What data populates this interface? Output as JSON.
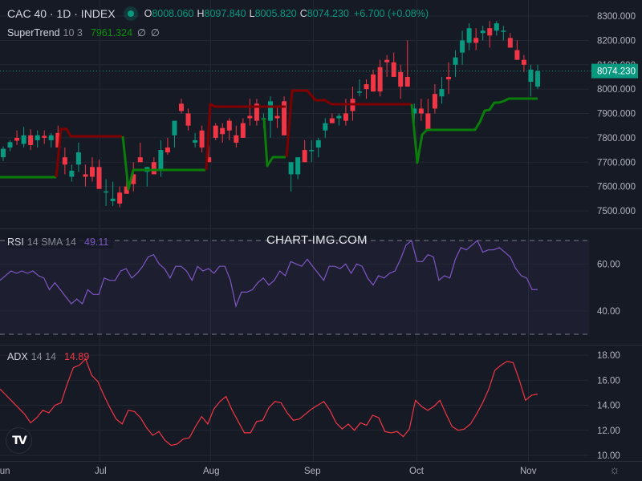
{
  "header": {
    "symbol": "CAC 40 · 1D · INDEX",
    "status_dot_color": "#089981",
    "open_label": "O",
    "open": "8008.060",
    "high_label": "H",
    "high": "8097.840",
    "low_label": "L",
    "low": "8005.820",
    "close_label": "C",
    "close": "8074.230",
    "change": "+6.700 (+0.08%)"
  },
  "supertrend": {
    "name": "SuperTrend",
    "params": "10 3",
    "value": "7961.324",
    "extra1": "∅",
    "extra2": "∅"
  },
  "rsi": {
    "name": "RSI",
    "params": "14 SMA 14",
    "value": "49.11"
  },
  "adx": {
    "name": "ADX",
    "params": "14 14",
    "value": "14.89"
  },
  "watermark": "CHART-IMG.COM",
  "price_axis": {
    "labels": [
      "8300.000",
      "8200.000",
      "8100.000",
      "8000.000",
      "7900.000",
      "7800.000",
      "7700.000",
      "7600.000",
      "7500.000"
    ],
    "current_price": "8074.230"
  },
  "rsi_axis": {
    "labels": [
      "60.00",
      "40.00"
    ]
  },
  "adx_axis": {
    "labels": [
      "18.00",
      "16.00",
      "14.00",
      "12.00",
      "10.00"
    ]
  },
  "time_axis": {
    "labels": [
      "Jun",
      "Jul",
      "Aug",
      "Sep",
      "Oct",
      "Nov"
    ]
  },
  "colors": {
    "up": "#089981",
    "down": "#f23645",
    "st_up": "#0a7d0a",
    "st_down": "#800000",
    "rsi": "#7e57c2",
    "adx": "#f23645",
    "bg": "#161a25",
    "grid": "#232733"
  },
  "chart_data": [
    {
      "type": "candlestick",
      "title": "CAC 40 · 1D · INDEX",
      "ylim": [
        7430,
        8330
      ],
      "x": [
        "Jun",
        "Jul",
        "Aug",
        "Sep",
        "Oct",
        "Nov"
      ],
      "ohlc_approx": [
        [
          7720,
          7765,
          7705,
          7755
        ],
        [
          7760,
          7790,
          7745,
          7782
        ],
        [
          7800,
          7830,
          7770,
          7788
        ],
        [
          7775,
          7845,
          7760,
          7810
        ],
        [
          7810,
          7835,
          7750,
          7770
        ],
        [
          7790,
          7830,
          7760,
          7810
        ],
        [
          7808,
          7830,
          7775,
          7800
        ],
        [
          7790,
          7820,
          7760,
          7810
        ],
        [
          7820,
          7850,
          7770,
          7760
        ],
        [
          7720,
          7760,
          7650,
          7690
        ],
        [
          7640,
          7690,
          7620,
          7665
        ],
        [
          7690,
          7780,
          7660,
          7740
        ],
        [
          7650,
          7690,
          7600,
          7640
        ],
        [
          7680,
          7720,
          7620,
          7640
        ],
        [
          7680,
          7710,
          7650,
          7590
        ],
        [
          7580,
          7630,
          7520,
          7580
        ],
        [
          7540,
          7620,
          7520,
          7550
        ],
        [
          7575,
          7600,
          7515,
          7530
        ],
        [
          7600,
          7650,
          7570,
          7570
        ],
        [
          7650,
          7700,
          7580,
          7610
        ],
        [
          7720,
          7780,
          7700,
          7700
        ],
        [
          7660,
          7680,
          7600,
          7680
        ],
        [
          7700,
          7720,
          7650,
          7650
        ],
        [
          7665,
          7790,
          7640,
          7750
        ],
        [
          7760,
          7800,
          7730,
          7740
        ],
        [
          7810,
          7860,
          7760,
          7870
        ],
        [
          7940,
          7960,
          7900,
          7910
        ],
        [
          7900,
          7920,
          7830,
          7850
        ],
        [
          7780,
          7820,
          7760,
          7790
        ],
        [
          7830,
          7850,
          7740,
          7760
        ],
        [
          7720,
          7770,
          7700,
          7700
        ],
        [
          7850,
          7860,
          7790,
          7800
        ],
        [
          7840,
          7860,
          7780,
          7815
        ],
        [
          7870,
          7880,
          7790,
          7830
        ],
        [
          7810,
          7850,
          7760,
          7780
        ],
        [
          7860,
          7880,
          7800,
          7800
        ],
        [
          7890,
          7960,
          7850,
          7880
        ],
        [
          7940,
          7960,
          7850,
          7870
        ],
        [
          7880,
          7900,
          7840,
          7880
        ],
        [
          7870,
          7970,
          7800,
          7950
        ],
        [
          7890,
          7930,
          7840,
          7880
        ],
        [
          7950,
          7970,
          7910,
          7810
        ],
        [
          7650,
          7680,
          7580,
          7700
        ],
        [
          7650,
          7720,
          7630,
          7720
        ],
        [
          7750,
          7790,
          7700,
          7700
        ],
        [
          7750,
          7790,
          7700,
          7750
        ],
        [
          7760,
          7800,
          7720,
          7790
        ],
        [
          7830,
          7880,
          7800,
          7860
        ],
        [
          7880,
          7900,
          7860,
          7860
        ],
        [
          7880,
          7900,
          7850,
          7890
        ],
        [
          7900,
          7960,
          7850,
          7870
        ],
        [
          7960,
          8010,
          7870,
          7910
        ],
        [
          7990,
          8040,
          7970,
          7990
        ],
        [
          8020,
          8040,
          7960,
          8000
        ],
        [
          8060,
          8080,
          7990,
          7990
        ],
        [
          8090,
          8120,
          7970,
          7990
        ],
        [
          8120,
          8140,
          8050,
          8110
        ],
        [
          8110,
          8150,
          8050,
          8050
        ],
        [
          8070,
          8100,
          7960,
          8010
        ],
        [
          8050,
          8200,
          8030,
          8010
        ],
        [
          7900,
          7940,
          7860,
          7920
        ],
        [
          7920,
          7960,
          7870,
          7900
        ],
        [
          7900,
          7960,
          7860,
          7830
        ],
        [
          7980,
          8020,
          7900,
          7920
        ],
        [
          7970,
          8050,
          7940,
          8000
        ],
        [
          8050,
          8110,
          7980,
          8040
        ],
        [
          8100,
          8160,
          8050,
          8130
        ],
        [
          8150,
          8240,
          8100,
          8200
        ],
        [
          8190,
          8270,
          8160,
          8250
        ],
        [
          8210,
          8250,
          8160,
          8190
        ],
        [
          8230,
          8260,
          8200,
          8240
        ],
        [
          8250,
          8280,
          8170,
          8220
        ],
        [
          8240,
          8280,
          8220,
          8270
        ],
        [
          8240,
          8260,
          8200,
          8240
        ],
        [
          8210,
          8230,
          8170,
          8170
        ],
        [
          8160,
          8200,
          8130,
          8120
        ],
        [
          8120,
          8140,
          8070,
          8100
        ],
        [
          8030,
          8100,
          7970,
          8080
        ],
        [
          8010,
          8100,
          8000,
          8074
        ]
      ],
      "supertrend": {
        "segments": [
          {
            "trend": "up",
            "value_start": 7640,
            "value_end": 7640
          },
          {
            "trend": "down",
            "value_start": 7830,
            "value_end": 7810
          },
          {
            "trend": "up",
            "value_start": 7590,
            "value_end": 7660
          },
          {
            "trend": "down",
            "value_start": 7930,
            "value_end": 7930
          },
          {
            "trend": "up",
            "value_start": 7600,
            "value_end": 7720
          },
          {
            "trend": "down",
            "value_start": 7990,
            "value_end": 7940
          },
          {
            "trend": "up",
            "value_start": 7700,
            "value_end": 7961.324
          }
        ],
        "last_value": 7961.324
      }
    },
    {
      "type": "line",
      "title": "RSI 14 SMA 14",
      "ylim": [
        30,
        70
      ],
      "bands": [
        70,
        30
      ],
      "last_value": 49.11,
      "values_approx": [
        53,
        55,
        57,
        56,
        57,
        56,
        57,
        55,
        54,
        49,
        52,
        49,
        46,
        43,
        45,
        43,
        49,
        47,
        47,
        54,
        53,
        53,
        57,
        58,
        54,
        56,
        59,
        63,
        64,
        60,
        58,
        54,
        59,
        59,
        57,
        53,
        59,
        57,
        58,
        56,
        59,
        59,
        53,
        42,
        48,
        48,
        49,
        52,
        54,
        51,
        53,
        57,
        55,
        61,
        60,
        59,
        62,
        59,
        56,
        53,
        59,
        59,
        58,
        60,
        56,
        60,
        59,
        54,
        51,
        55,
        54,
        56,
        57,
        62,
        68,
        70,
        61,
        61,
        64,
        63,
        53,
        55,
        54,
        62,
        67,
        66,
        68,
        70,
        65,
        66,
        66,
        67,
        65,
        63,
        58,
        55,
        54,
        49,
        49.11
      ]
    },
    {
      "type": "line",
      "title": "ADX 14 14",
      "ylim": [
        10,
        18.4
      ],
      "last_value": 14.89,
      "values_approx": [
        15.3,
        14.8,
        14.3,
        13.8,
        13.3,
        12.6,
        13.0,
        13.6,
        13.4,
        14.0,
        14.2,
        15.7,
        17.0,
        17.2,
        17.7,
        16.4,
        15.9,
        14.8,
        13.8,
        12.9,
        12.5,
        13.6,
        13.5,
        13.0,
        12.2,
        11.6,
        11.9,
        11.2,
        10.8,
        10.9,
        11.3,
        11.4,
        12.3,
        13.1,
        12.5,
        13.7,
        14.3,
        14.7,
        13.6,
        12.7,
        11.8,
        11.8,
        12.7,
        12.8,
        13.8,
        14.3,
        14.2,
        13.4,
        12.8,
        12.9,
        13.3,
        13.7,
        14.0,
        14.3,
        13.6,
        12.6,
        12.1,
        12.5,
        12.0,
        12.6,
        12.4,
        13.2,
        13.0,
        11.9,
        11.8,
        11.9,
        11.5,
        12.1,
        14.4,
        13.9,
        13.6,
        13.9,
        14.4,
        13.3,
        12.3,
        12.0,
        12.1,
        12.5,
        13.3,
        14.2,
        15.3,
        16.8,
        17.2,
        17.5,
        17.4,
        16.0,
        14.4,
        14.8,
        14.89
      ]
    }
  ]
}
